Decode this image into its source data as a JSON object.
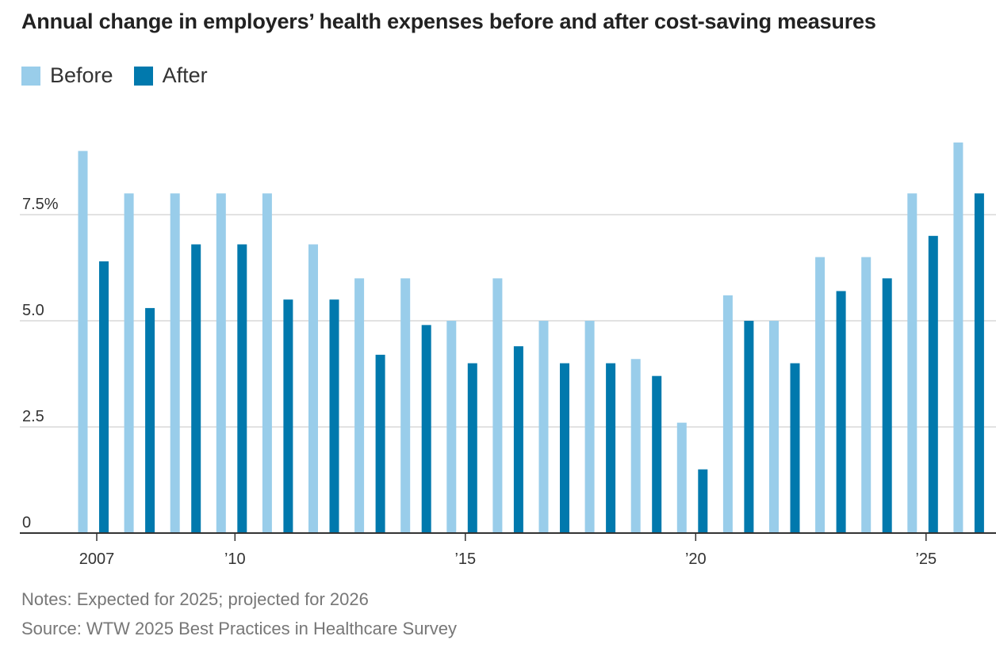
{
  "title": "Annual change in employers’ health expenses before and after cost-saving measures",
  "legend": {
    "before": "Before",
    "after": "After"
  },
  "colors": {
    "before": "#99cdea",
    "after": "#0179ad",
    "grid": "#d9d9d9",
    "axis": "#333333"
  },
  "notes": {
    "line1": "Notes: Expected for 2025; projected for 2026",
    "line2": "Source: WTW 2025 Best Practices in Healthcare Survey"
  },
  "chart_data": {
    "type": "bar",
    "title": "Annual change in employers’ health expenses before and after cost-saving measures",
    "xlabel": "",
    "ylabel": "",
    "ylim": [
      0,
      9.5
    ],
    "grid": true,
    "legend_position": "top-left",
    "categories": [
      "2007",
      "2008",
      "2009",
      "2010",
      "2011",
      "2012",
      "2013",
      "2014",
      "2015",
      "2016",
      "2017",
      "2018",
      "2019",
      "2020",
      "2021",
      "2022",
      "2023",
      "2024",
      "2025",
      "2026"
    ],
    "series": [
      {
        "name": "Before",
        "values": [
          9.0,
          8.0,
          8.0,
          8.0,
          8.0,
          6.8,
          6.0,
          6.0,
          5.0,
          6.0,
          5.0,
          5.0,
          4.1,
          2.6,
          5.6,
          5.0,
          6.5,
          6.5,
          8.0,
          9.2
        ]
      },
      {
        "name": "After",
        "values": [
          6.4,
          5.3,
          6.8,
          6.8,
          5.5,
          5.5,
          4.2,
          4.9,
          4.0,
          4.4,
          4.0,
          4.0,
          3.7,
          1.5,
          5.0,
          4.0,
          5.7,
          6.0,
          7.0,
          8.0
        ]
      }
    ],
    "y_ticks": [
      {
        "value": 0,
        "label": "0"
      },
      {
        "value": 2.5,
        "label": "2.5"
      },
      {
        "value": 5,
        "label": "5.0"
      },
      {
        "value": 7.5,
        "label": "7.5%"
      }
    ],
    "x_ticks": [
      {
        "category": "2007",
        "label": "2007"
      },
      {
        "category": "2010",
        "label": "’10"
      },
      {
        "category": "2015",
        "label": "’15"
      },
      {
        "category": "2020",
        "label": "’20"
      },
      {
        "category": "2025",
        "label": "’25"
      }
    ]
  }
}
